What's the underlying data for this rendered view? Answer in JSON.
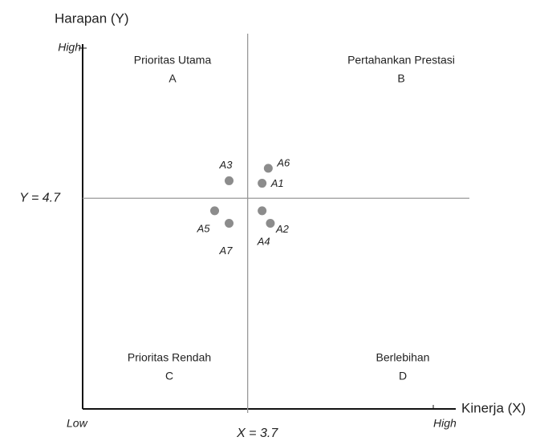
{
  "chart_data": {
    "type": "scatter",
    "x_label": "Kinerja (X)",
    "y_label": "Harapan (Y)",
    "xlim": [
      2.9,
      4.6
    ],
    "ylim": [
      3.9,
      5.3
    ],
    "xticks": [
      {
        "value": 2.9,
        "label": "Low"
      },
      {
        "value": 4.6,
        "label": "High"
      }
    ],
    "yticks": [
      {
        "value": 5.3,
        "label": "High"
      }
    ],
    "x_ref": {
      "value": 3.7,
      "label": "X = 3.7"
    },
    "y_ref": {
      "value": 4.7,
      "label": "Y = 4.7"
    },
    "quadrants": [
      {
        "name": "Prioritas Utama",
        "letter": "A"
      },
      {
        "name": "Pertahankan Prestasi",
        "letter": "B"
      },
      {
        "name": "Prioritas Rendah",
        "letter": "C"
      },
      {
        "name": "Berlebihan",
        "letter": "D"
      }
    ],
    "color": "#8c8c8c",
    "labels": [
      "A1",
      "A2",
      "A3",
      "A4",
      "A5",
      "A6",
      "A7"
    ],
    "x": [
      3.77,
      3.81,
      3.61,
      3.77,
      3.54,
      3.8,
      3.61
    ],
    "y": [
      4.76,
      4.6,
      4.77,
      4.65,
      4.65,
      4.82,
      4.6
    ]
  }
}
